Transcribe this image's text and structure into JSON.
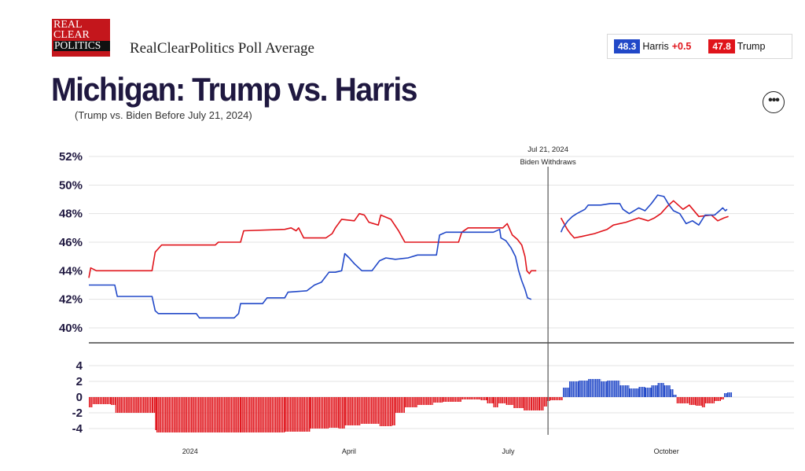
{
  "header": {
    "logo_lines": [
      "REAL",
      "CLEAR",
      "POLITICS"
    ],
    "brand_title": "RealClearPolitics Poll Average",
    "title": "Michigan: Trump vs. Harris",
    "subtitle": "(Trump vs. Biden Before July 21, 2024)",
    "more_label": "•••"
  },
  "legend": {
    "harris_value": "48.3",
    "harris_name": "Harris",
    "harris_lead": "+0.5",
    "trump_value": "47.8",
    "trump_name": "Trump"
  },
  "colors": {
    "harris": "#2148c8",
    "trump": "#e0141b",
    "grid": "#e3e3e3",
    "axis": "#222222"
  },
  "chart_data": {
    "type": "line",
    "annotation": {
      "date_label": "Jul 21, 2024",
      "text": "Biden Withdraws",
      "x_fraction": 0.7265
    },
    "x_tick_labels": [
      {
        "label": "2024",
        "x_fraction": 0.1602
      },
      {
        "label": "April",
        "x_fraction": 0.4115
      },
      {
        "label": "July",
        "x_fraction": 0.6636
      },
      {
        "label": "October",
        "x_fraction": 0.9138
      }
    ],
    "top_panel": {
      "ylim": [
        39,
        53
      ],
      "y_ticks": [
        40,
        42,
        44,
        46,
        48,
        50,
        52
      ],
      "y_tick_labels": [
        "40%",
        "42%",
        "44%",
        "46%",
        "48%",
        "50%",
        "52%"
      ],
      "series": [
        {
          "key": "trump",
          "segments": [
            [
              [
                0.0,
                43.5
              ],
              [
                0.003,
                44.2
              ],
              [
                0.012,
                44.0
              ],
              [
                0.1,
                44.0
              ],
              [
                0.105,
                45.3
              ],
              [
                0.115,
                45.8
              ],
              [
                0.2,
                45.8
              ],
              [
                0.205,
                46.0
              ],
              [
                0.24,
                46.0
              ],
              [
                0.245,
                46.8
              ],
              [
                0.31,
                46.9
              ],
              [
                0.32,
                47.0
              ],
              [
                0.328,
                46.8
              ],
              [
                0.332,
                47.0
              ],
              [
                0.34,
                46.3
              ],
              [
                0.375,
                46.3
              ],
              [
                0.385,
                46.6
              ],
              [
                0.39,
                47.0
              ],
              [
                0.4,
                47.6
              ],
              [
                0.42,
                47.5
              ],
              [
                0.428,
                48.0
              ],
              [
                0.436,
                47.9
              ],
              [
                0.443,
                47.4
              ],
              [
                0.458,
                47.2
              ],
              [
                0.462,
                47.9
              ],
              [
                0.478,
                47.6
              ],
              [
                0.49,
                46.8
              ],
              [
                0.5,
                46.0
              ],
              [
                0.585,
                46.0
              ],
              [
                0.59,
                46.7
              ],
              [
                0.6,
                47.0
              ],
              [
                0.655,
                47.0
              ],
              [
                0.662,
                47.3
              ],
              [
                0.67,
                46.5
              ],
              [
                0.678,
                46.2
              ],
              [
                0.685,
                45.8
              ],
              [
                0.69,
                45.0
              ],
              [
                0.693,
                44.0
              ],
              [
                0.697,
                43.8
              ],
              [
                0.7,
                44.0
              ],
              [
                0.708,
                44.0
              ]
            ],
            [
              [
                0.747,
                47.7
              ],
              [
                0.752,
                47.3
              ],
              [
                0.757,
                46.9
              ],
              [
                0.762,
                46.6
              ],
              [
                0.768,
                46.3
              ],
              [
                0.78,
                46.4
              ],
              [
                0.8,
                46.6
              ],
              [
                0.82,
                46.9
              ],
              [
                0.83,
                47.2
              ],
              [
                0.85,
                47.4
              ],
              [
                0.87,
                47.7
              ],
              [
                0.885,
                47.5
              ],
              [
                0.895,
                47.7
              ],
              [
                0.905,
                48.0
              ],
              [
                0.915,
                48.5
              ],
              [
                0.925,
                48.9
              ],
              [
                0.94,
                48.3
              ],
              [
                0.95,
                48.6
              ],
              [
                0.965,
                47.8
              ],
              [
                0.985,
                47.9
              ],
              [
                0.995,
                47.5
              ],
              [
                1.005,
                47.7
              ],
              [
                1.012,
                47.8
              ]
            ]
          ]
        },
        {
          "key": "harris",
          "segments": [
            [
              [
                0.0,
                43.0
              ],
              [
                0.041,
                43.0
              ],
              [
                0.045,
                42.2
              ],
              [
                0.1,
                42.2
              ],
              [
                0.105,
                41.2
              ],
              [
                0.11,
                41.0
              ],
              [
                0.17,
                41.0
              ],
              [
                0.175,
                40.7
              ],
              [
                0.23,
                40.7
              ],
              [
                0.237,
                41.0
              ],
              [
                0.24,
                41.7
              ],
              [
                0.275,
                41.7
              ],
              [
                0.282,
                42.1
              ],
              [
                0.31,
                42.1
              ],
              [
                0.315,
                42.5
              ],
              [
                0.345,
                42.6
              ],
              [
                0.357,
                43.0
              ],
              [
                0.368,
                43.2
              ],
              [
                0.38,
                43.9
              ],
              [
                0.39,
                43.9
              ],
              [
                0.4,
                44.0
              ],
              [
                0.405,
                45.2
              ],
              [
                0.412,
                44.9
              ],
              [
                0.42,
                44.5
              ],
              [
                0.432,
                44.0
              ],
              [
                0.448,
                44.0
              ],
              [
                0.46,
                44.7
              ],
              [
                0.47,
                44.9
              ],
              [
                0.485,
                44.8
              ],
              [
                0.505,
                44.9
              ],
              [
                0.52,
                45.1
              ],
              [
                0.55,
                45.1
              ],
              [
                0.555,
                46.5
              ],
              [
                0.56,
                46.6
              ],
              [
                0.565,
                46.7
              ],
              [
                0.605,
                46.7
              ],
              [
                0.64,
                46.7
              ],
              [
                0.65,
                46.9
              ],
              [
                0.652,
                46.3
              ],
              [
                0.66,
                46.1
              ],
              [
                0.668,
                45.6
              ],
              [
                0.675,
                45.0
              ],
              [
                0.68,
                44.0
              ],
              [
                0.685,
                43.3
              ],
              [
                0.69,
                42.7
              ],
              [
                0.694,
                42.1
              ],
              [
                0.7,
                42.0
              ]
            ],
            [
              [
                0.747,
                46.7
              ],
              [
                0.75,
                47.0
              ],
              [
                0.758,
                47.5
              ],
              [
                0.765,
                47.8
              ],
              [
                0.772,
                48.0
              ],
              [
                0.785,
                48.3
              ],
              [
                0.79,
                48.6
              ],
              [
                0.81,
                48.6
              ],
              [
                0.825,
                48.7
              ],
              [
                0.84,
                48.7
              ],
              [
                0.845,
                48.3
              ],
              [
                0.855,
                48.0
              ],
              [
                0.87,
                48.4
              ],
              [
                0.88,
                48.2
              ],
              [
                0.89,
                48.7
              ],
              [
                0.9,
                49.3
              ],
              [
                0.91,
                49.2
              ],
              [
                0.918,
                48.6
              ],
              [
                0.925,
                48.2
              ],
              [
                0.935,
                48.0
              ],
              [
                0.945,
                47.3
              ],
              [
                0.955,
                47.5
              ],
              [
                0.965,
                47.2
              ],
              [
                0.975,
                47.9
              ],
              [
                0.99,
                47.9
              ],
              [
                0.998,
                48.2
              ],
              [
                1.003,
                48.4
              ],
              [
                1.007,
                48.2
              ],
              [
                1.01,
                48.3
              ]
            ]
          ]
        }
      ]
    },
    "bottom_panel": {
      "type": "bar",
      "ylim": [
        -5,
        5
      ],
      "y_ticks": [
        4,
        2,
        0,
        -2,
        -4
      ],
      "y_tick_labels": [
        "4",
        "2",
        "0",
        "-2",
        "-4"
      ],
      "bars": [
        [
          0.0,
          -1.3
        ],
        [
          0.006,
          -0.9
        ],
        [
          0.035,
          -1.0
        ],
        [
          0.042,
          -2.0
        ],
        [
          0.1,
          -2.0
        ],
        [
          0.105,
          -4.2
        ],
        [
          0.107,
          -4.5
        ],
        [
          0.17,
          -4.5
        ],
        [
          0.24,
          -4.5
        ],
        [
          0.31,
          -4.4
        ],
        [
          0.35,
          -4.0
        ],
        [
          0.38,
          -3.9
        ],
        [
          0.395,
          -4.0
        ],
        [
          0.405,
          -3.6
        ],
        [
          0.43,
          -3.4
        ],
        [
          0.46,
          -3.7
        ],
        [
          0.48,
          -3.6
        ],
        [
          0.485,
          -2.0
        ],
        [
          0.5,
          -1.3
        ],
        [
          0.52,
          -1.0
        ],
        [
          0.545,
          -0.7
        ],
        [
          0.56,
          -0.6
        ],
        [
          0.59,
          -0.3
        ],
        [
          0.62,
          -0.4
        ],
        [
          0.63,
          -0.8
        ],
        [
          0.64,
          -1.3
        ],
        [
          0.648,
          -0.8
        ],
        [
          0.66,
          -1.0
        ],
        [
          0.672,
          -1.4
        ],
        [
          0.688,
          -1.7
        ],
        [
          0.7,
          -1.7
        ],
        [
          0.712,
          -1.7
        ],
        [
          0.72,
          -1.2
        ],
        [
          0.725,
          -0.5
        ],
        [
          0.73,
          -0.4
        ],
        [
          0.75,
          1.2
        ],
        [
          0.76,
          2.0
        ],
        [
          0.775,
          2.1
        ],
        [
          0.79,
          2.3
        ],
        [
          0.81,
          2.0
        ],
        [
          0.82,
          2.1
        ],
        [
          0.84,
          1.5
        ],
        [
          0.855,
          1.1
        ],
        [
          0.87,
          1.3
        ],
        [
          0.88,
          1.2
        ],
        [
          0.89,
          1.5
        ],
        [
          0.9,
          1.8
        ],
        [
          0.91,
          1.5
        ],
        [
          0.92,
          1.0
        ],
        [
          0.925,
          0.3
        ],
        [
          0.93,
          -0.8
        ],
        [
          0.95,
          -1.0
        ],
        [
          0.96,
          -1.1
        ],
        [
          0.97,
          -1.3
        ],
        [
          0.975,
          -0.8
        ],
        [
          0.99,
          -0.5
        ],
        [
          1.0,
          -0.3
        ],
        [
          1.005,
          0.5
        ],
        [
          1.01,
          0.6
        ]
      ]
    }
  }
}
